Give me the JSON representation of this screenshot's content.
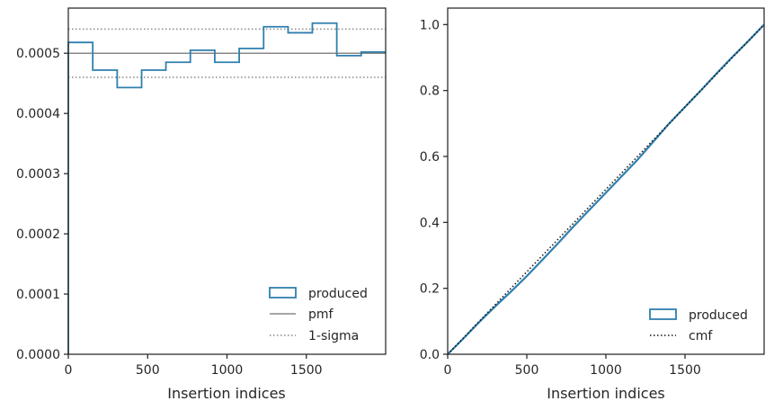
{
  "chart_data": [
    {
      "type": "histogram",
      "xlabel": "Insertion indices",
      "ylabel": "",
      "xlim": [
        0,
        2000
      ],
      "ylim": [
        0,
        0.000575
      ],
      "xticks": [
        0,
        500,
        1000,
        1500
      ],
      "xtick_labels": [
        "0",
        "500",
        "1000",
        "1500"
      ],
      "yticks": [
        0,
        0.0001,
        0.0002,
        0.0003,
        0.0004,
        0.0005
      ],
      "ytick_labels": [
        "0.0000",
        "0.0001",
        "0.0002",
        "0.0003",
        "0.0004",
        "0.0005"
      ],
      "grid": false,
      "legend_position": "lower right",
      "bin_edges": [
        0,
        154,
        308,
        462,
        615,
        769,
        923,
        1077,
        1231,
        1385,
        1538,
        1692,
        1846,
        2000
      ],
      "series": [
        {
          "name": "produced",
          "kind": "step",
          "color": "#2f7fae",
          "values": [
            0.000518,
            0.000472,
            0.000443,
            0.000472,
            0.000485,
            0.000505,
            0.000485,
            0.000508,
            0.000544,
            0.000534,
            0.00055,
            0.000496,
            0.000502
          ]
        },
        {
          "name": "pmf",
          "kind": "hline",
          "color": "#888888",
          "value": 0.0005
        },
        {
          "name": "1-sigma",
          "kind": "hline-dotted",
          "color": "#888888",
          "values": [
            0.00046,
            0.00054
          ]
        }
      ]
    },
    {
      "type": "line",
      "xlabel": "Insertion indices",
      "ylabel": "",
      "xlim": [
        0,
        2000
      ],
      "ylim": [
        0,
        1.05
      ],
      "xticks": [
        0,
        500,
        1000,
        1500
      ],
      "xtick_labels": [
        "0",
        "500",
        "1000",
        "1500"
      ],
      "yticks": [
        0,
        0.2,
        0.4,
        0.6,
        0.8,
        1.0
      ],
      "ytick_labels": [
        "0.0",
        "0.2",
        "0.4",
        "0.6",
        "0.8",
        "1.0"
      ],
      "grid": false,
      "legend_position": "lower right",
      "series": [
        {
          "name": "produced",
          "kind": "line",
          "color": "#2f7fae",
          "x": [
            0,
            100,
            200,
            300,
            400,
            500,
            600,
            700,
            800,
            900,
            1000,
            1100,
            1200,
            1300,
            1400,
            1500,
            1600,
            1700,
            1800,
            1900,
            2000
          ],
          "y": [
            0,
            0.048,
            0.098,
            0.145,
            0.19,
            0.237,
            0.287,
            0.338,
            0.39,
            0.44,
            0.49,
            0.54,
            0.59,
            0.645,
            0.7,
            0.75,
            0.8,
            0.852,
            0.902,
            0.95,
            1.0
          ]
        },
        {
          "name": "cmf",
          "kind": "line-dotted",
          "color": "#111111",
          "x": [
            0,
            2000
          ],
          "y": [
            0,
            1.0
          ]
        }
      ]
    }
  ]
}
